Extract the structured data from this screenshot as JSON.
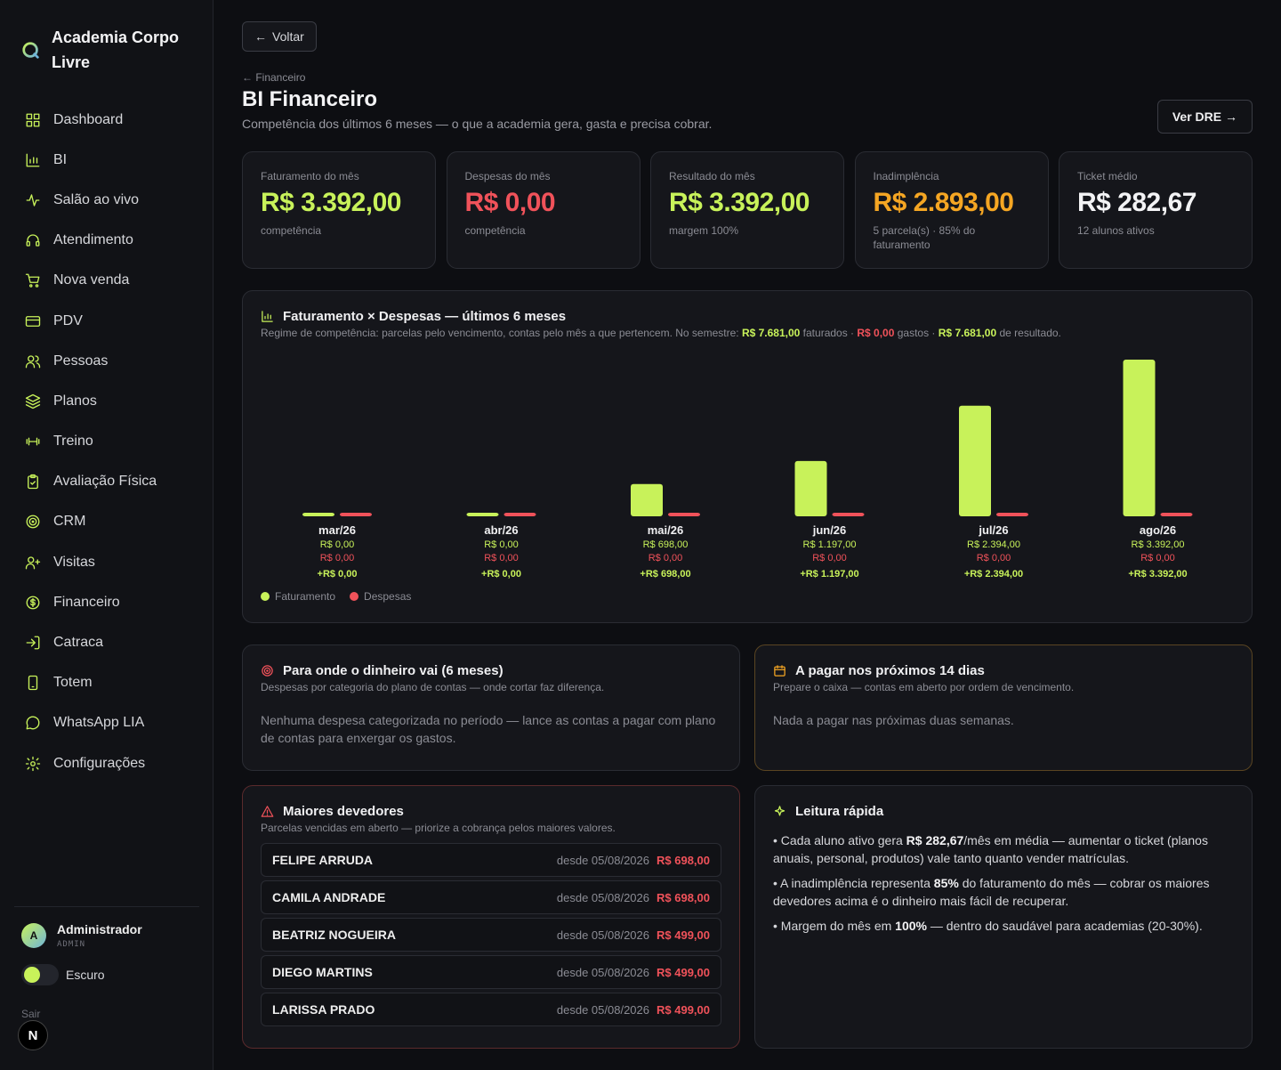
{
  "brand": {
    "name": "Academia Corpo Livre"
  },
  "sidebar": {
    "items": [
      {
        "label": "Dashboard",
        "icon": "grid-icon"
      },
      {
        "label": "BI",
        "icon": "bar-chart-icon"
      },
      {
        "label": "Salão ao vivo",
        "icon": "activity-icon"
      },
      {
        "label": "Atendimento",
        "icon": "headset-icon"
      },
      {
        "label": "Nova venda",
        "icon": "cart-icon"
      },
      {
        "label": "PDV",
        "icon": "credit-card-icon"
      },
      {
        "label": "Pessoas",
        "icon": "users-icon"
      },
      {
        "label": "Planos",
        "icon": "layers-icon"
      },
      {
        "label": "Treino",
        "icon": "dumbbell-icon"
      },
      {
        "label": "Avaliação Física",
        "icon": "clipboard-icon"
      },
      {
        "label": "CRM",
        "icon": "target-icon"
      },
      {
        "label": "Visitas",
        "icon": "user-plus-icon"
      },
      {
        "label": "Financeiro",
        "icon": "dollar-icon"
      },
      {
        "label": "Catraca",
        "icon": "login-icon"
      },
      {
        "label": "Totem",
        "icon": "smartphone-icon"
      },
      {
        "label": "WhatsApp LIA",
        "icon": "message-icon"
      },
      {
        "label": "Configurações",
        "icon": "gear-icon"
      }
    ],
    "user": {
      "name": "Administrador",
      "role": "ADMIN",
      "initial": "A"
    },
    "theme_label": "Escuro",
    "logout": "Sair",
    "badge": "N"
  },
  "header": {
    "back": "Voltar",
    "breadcrumb": "← Financeiro",
    "title": "BI Financeiro",
    "subtitle": "Competência dos últimos 6 meses — o que a academia gera, gasta e precisa cobrar.",
    "dre_button": "Ver DRE →"
  },
  "kpis": [
    {
      "label": "Faturamento do mês",
      "value": "R$ 3.392,00",
      "note": "competência",
      "color": "#c8f25a"
    },
    {
      "label": "Despesas do mês",
      "value": "R$ 0,00",
      "note": "competência",
      "color": "#f0525a"
    },
    {
      "label": "Resultado do mês",
      "value": "R$ 3.392,00",
      "note": "margem 100%",
      "color": "#c8f25a"
    },
    {
      "label": "Inadimplência",
      "value": "R$ 2.893,00",
      "note": "5 parcela(s) · 85% do faturamento",
      "color": "#f5a623"
    },
    {
      "label": "Ticket médio",
      "value": "R$ 282,67",
      "note": "12 alunos ativos",
      "color": "#f3f3f5"
    }
  ],
  "revenue_chart": {
    "title": "Faturamento × Despesas — últimos 6 meses",
    "sub_prefix": "Regime de competência: parcelas pelo vencimento, contas pelo mês a que pertencem. No semestre: ",
    "total_revenue": "R$ 7.681,00",
    "revenue_word": " faturados · ",
    "total_expenses": "R$ 0,00",
    "expense_word": " gastos · ",
    "total_result": "R$ 7.681,00",
    "result_word": " de resultado.",
    "legend_revenue": "Faturamento",
    "legend_expenses": "Despesas"
  },
  "chart_data": {
    "type": "bar",
    "categories": [
      "mar/26",
      "abr/26",
      "mai/26",
      "jun/26",
      "jul/26",
      "ago/26"
    ],
    "series": [
      {
        "name": "Faturamento",
        "values": [
          0,
          0,
          698,
          1197,
          2394,
          3392
        ],
        "color": "#c8f25a"
      },
      {
        "name": "Despesas",
        "values": [
          0,
          0,
          0,
          0,
          0,
          0
        ],
        "color": "#f0525a"
      }
    ],
    "revenue_labels": [
      "R$ 0,00",
      "R$ 0,00",
      "R$ 698,00",
      "R$ 1.197,00",
      "R$ 2.394,00",
      "R$ 3.392,00"
    ],
    "expense_labels": [
      "R$ 0,00",
      "R$ 0,00",
      "R$ 0,00",
      "R$ 0,00",
      "R$ 0,00",
      "R$ 0,00"
    ],
    "result_labels": [
      "+R$ 0,00",
      "+R$ 0,00",
      "+R$ 698,00",
      "+R$ 1.197,00",
      "+R$ 2.394,00",
      "+R$ 3.392,00"
    ],
    "ylim": [
      0,
      3392
    ],
    "grid": false,
    "legend": "bottom-left"
  },
  "where_money": {
    "title": "Para onde o dinheiro vai (6 meses)",
    "sub": "Despesas por categoria do plano de contas — onde cortar faz diferença.",
    "empty": "Nenhuma despesa categorizada no período — lance as contas a pagar com plano de contas para enxergar os gastos."
  },
  "to_pay": {
    "title": "A pagar nos próximos 14 dias",
    "sub": "Prepare o caixa — contas em aberto por ordem de vencimento.",
    "empty": "Nada a pagar nas próximas duas semanas."
  },
  "debtors": {
    "title": "Maiores devedores",
    "sub": "Parcelas vencidas em aberto — priorize a cobrança pelos maiores valores.",
    "rows": [
      {
        "name": "FELIPE ARRUDA",
        "since": "desde 05/08/2026",
        "amount": "R$ 698,00"
      },
      {
        "name": "CAMILA ANDRADE",
        "since": "desde 05/08/2026",
        "amount": "R$ 698,00"
      },
      {
        "name": "BEATRIZ NOGUEIRA",
        "since": "desde 05/08/2026",
        "amount": "R$ 499,00"
      },
      {
        "name": "DIEGO MARTINS",
        "since": "desde 05/08/2026",
        "amount": "R$ 499,00"
      },
      {
        "name": "LARISSA PRADO",
        "since": "desde 05/08/2026",
        "amount": "R$ 499,00"
      }
    ]
  },
  "quick_read": {
    "title": "Leitura rápida",
    "b1_a": "• Cada aluno ativo gera ",
    "b1_b": "R$ 282,67",
    "b1_c": "/mês em média — aumentar o ticket (planos anuais, personal, produtos) vale tanto quanto vender matrículas.",
    "b2_a": "• A inadimplência representa ",
    "b2_b": "85%",
    "b2_c": " do faturamento do mês — cobrar os maiores devedores acima é o dinheiro mais fácil de recuperar.",
    "b3_a": "• Margem do mês em ",
    "b3_b": "100%",
    "b3_c": " — dentro do saudável para academias (20-30%)."
  },
  "colors": {
    "accent": "#c8f25a",
    "danger": "#f0525a",
    "warning": "#f5a623"
  }
}
